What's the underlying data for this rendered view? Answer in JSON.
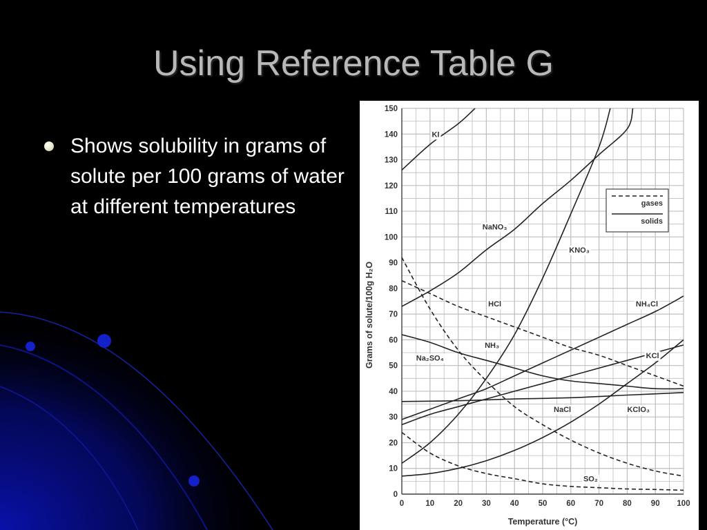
{
  "slide": {
    "title": "Using Reference Table G",
    "bullets": [
      "Shows solubility in grams of solute per 100 grams of water at different temperatures"
    ]
  },
  "colors": {
    "background": "#000000",
    "title": "#b8b8b8",
    "bullet_text": "#ffffff",
    "swoosh": "#0a12b4"
  },
  "chart_data": {
    "type": "line",
    "title": "",
    "xlabel": "Temperature (°C)",
    "ylabel": "Grams of solute/100g H₂O",
    "xlim": [
      0,
      100
    ],
    "ylim": [
      0,
      150
    ],
    "xticks": [
      0,
      10,
      20,
      30,
      40,
      50,
      60,
      70,
      80,
      90,
      100
    ],
    "yticks": [
      0,
      10,
      20,
      30,
      40,
      50,
      60,
      70,
      80,
      90,
      100,
      110,
      120,
      130,
      140,
      150
    ],
    "grid": true,
    "legend": {
      "placement": "top-right",
      "entries": [
        {
          "name": "gases",
          "style": "dashed"
        },
        {
          "name": "solids",
          "style": "solid"
        }
      ]
    },
    "series": [
      {
        "name": "KI",
        "style": "solid",
        "points": [
          [
            0,
            126
          ],
          [
            10,
            136
          ],
          [
            20,
            144
          ],
          [
            26,
            150
          ]
        ]
      },
      {
        "name": "NaNO₃",
        "style": "solid",
        "points": [
          [
            0,
            73
          ],
          [
            10,
            79
          ],
          [
            20,
            86
          ],
          [
            30,
            95
          ],
          [
            40,
            103
          ],
          [
            50,
            113
          ],
          [
            60,
            122
          ],
          [
            70,
            132
          ],
          [
            80,
            142
          ],
          [
            82,
            150
          ]
        ]
      },
      {
        "name": "KNO₃",
        "style": "solid",
        "points": [
          [
            0,
            12
          ],
          [
            10,
            20
          ],
          [
            20,
            31
          ],
          [
            30,
            45
          ],
          [
            40,
            62
          ],
          [
            50,
            84
          ],
          [
            60,
            109
          ],
          [
            70,
            135
          ],
          [
            74,
            150
          ]
        ]
      },
      {
        "name": "NH₄Cl",
        "style": "solid",
        "points": [
          [
            0,
            29
          ],
          [
            10,
            33
          ],
          [
            20,
            37
          ],
          [
            30,
            41
          ],
          [
            40,
            46
          ],
          [
            50,
            51
          ],
          [
            60,
            56
          ],
          [
            70,
            61
          ],
          [
            80,
            66
          ],
          [
            90,
            71
          ],
          [
            100,
            77
          ]
        ]
      },
      {
        "name": "KCl",
        "style": "solid",
        "points": [
          [
            0,
            27
          ],
          [
            10,
            31
          ],
          [
            20,
            34
          ],
          [
            30,
            37
          ],
          [
            40,
            40
          ],
          [
            50,
            43
          ],
          [
            60,
            46
          ],
          [
            70,
            49
          ],
          [
            80,
            52
          ],
          [
            90,
            55
          ],
          [
            100,
            58
          ]
        ]
      },
      {
        "name": "NaCl",
        "style": "solid",
        "points": [
          [
            0,
            36
          ],
          [
            20,
            36.3
          ],
          [
            40,
            37
          ],
          [
            60,
            37.5
          ],
          [
            80,
            38.5
          ],
          [
            100,
            39.5
          ]
        ]
      },
      {
        "name": "Na₂SO₄",
        "style": "solid",
        "points": [
          [
            0,
            62
          ],
          [
            10,
            59
          ],
          [
            20,
            55
          ],
          [
            30,
            52
          ],
          [
            40,
            49
          ],
          [
            50,
            46
          ],
          [
            60,
            44
          ],
          [
            70,
            43
          ],
          [
            80,
            42
          ],
          [
            90,
            41
          ],
          [
            100,
            41
          ]
        ]
      },
      {
        "name": "KClO₃",
        "style": "solid",
        "points": [
          [
            0,
            7
          ],
          [
            10,
            8
          ],
          [
            20,
            10
          ],
          [
            30,
            13
          ],
          [
            40,
            17
          ],
          [
            50,
            22
          ],
          [
            60,
            28
          ],
          [
            70,
            35
          ],
          [
            80,
            43
          ],
          [
            90,
            51
          ],
          [
            100,
            60
          ]
        ]
      },
      {
        "name": "HCl",
        "style": "dashed",
        "points": [
          [
            0,
            83
          ],
          [
            10,
            78
          ],
          [
            20,
            73
          ],
          [
            30,
            69
          ],
          [
            40,
            65
          ],
          [
            50,
            61
          ],
          [
            60,
            57
          ],
          [
            70,
            54
          ],
          [
            80,
            50
          ],
          [
            90,
            46
          ],
          [
            100,
            42
          ]
        ]
      },
      {
        "name": "NH₃",
        "style": "dashed",
        "points": [
          [
            0,
            92
          ],
          [
            10,
            72
          ],
          [
            20,
            56
          ],
          [
            30,
            44
          ],
          [
            40,
            34
          ],
          [
            50,
            27
          ],
          [
            60,
            21
          ],
          [
            70,
            16
          ],
          [
            80,
            12
          ],
          [
            90,
            9
          ],
          [
            100,
            7
          ]
        ]
      },
      {
        "name": "SO₂",
        "style": "dashed",
        "points": [
          [
            0,
            24
          ],
          [
            10,
            16
          ],
          [
            20,
            11
          ],
          [
            30,
            8
          ],
          [
            40,
            6
          ],
          [
            50,
            4
          ],
          [
            60,
            3
          ],
          [
            70,
            2.5
          ],
          [
            80,
            2
          ],
          [
            90,
            1.8
          ],
          [
            100,
            1.5
          ]
        ]
      }
    ],
    "annotations": [
      {
        "label": "KI",
        "x": 12,
        "y": 140
      },
      {
        "label": "NaNO₃",
        "x": 33,
        "y": 104
      },
      {
        "label": "KNO₃",
        "x": 63,
        "y": 95
      },
      {
        "label": "HCl",
        "x": 33,
        "y": 74
      },
      {
        "label": "NH₄Cl",
        "x": 87,
        "y": 74
      },
      {
        "label": "NH₃",
        "x": 32,
        "y": 58
      },
      {
        "label": "Na₂SO₄",
        "x": 10,
        "y": 53
      },
      {
        "label": "KCl",
        "x": 89,
        "y": 54
      },
      {
        "label": "NaCl",
        "x": 57,
        "y": 33
      },
      {
        "label": "KClO₃",
        "x": 84,
        "y": 33
      },
      {
        "label": "SO₂",
        "x": 67,
        "y": 6
      }
    ]
  }
}
